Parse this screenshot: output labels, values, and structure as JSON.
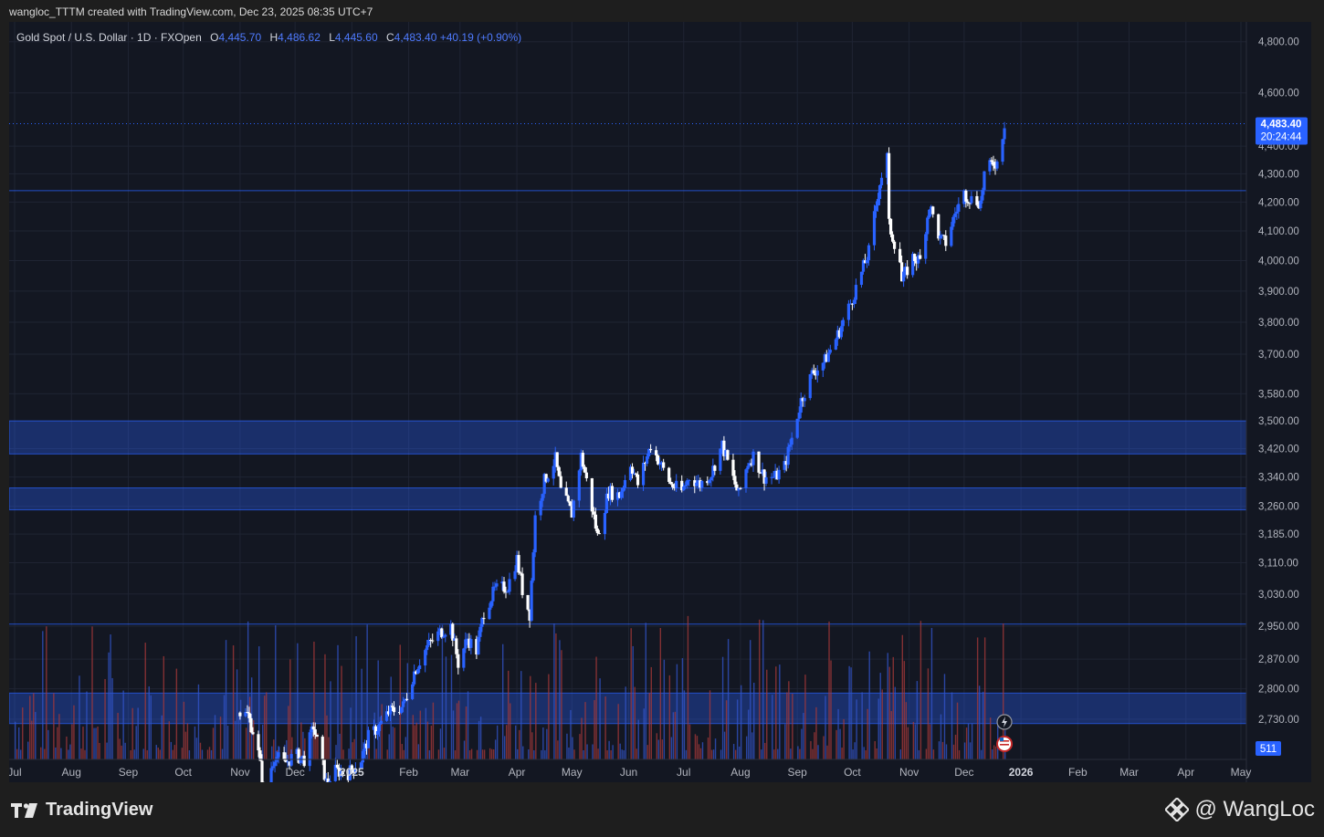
{
  "header": {
    "caption": "wangloc_TTTM created with TradingView.com, Dec 23, 2025 08:35 UTC+7"
  },
  "legend": {
    "symbol": "Gold Spot / U.S. Dollar · 1D · FXOpen",
    "o_label": "O",
    "o": "4,445.70",
    "h_label": "H",
    "h": "4,486.62",
    "l_label": "L",
    "l": "4,445.60",
    "c_label": "C",
    "c": "4,483.40",
    "change": "+40.19 (+0.90%)"
  },
  "price_tag": {
    "price": "4,483.40",
    "countdown": "20:24:44"
  },
  "volume_tag": "511",
  "footer": {
    "logo_text": "TradingView",
    "credit": "@ WangLoc"
  },
  "icons": [
    "lightning-icon",
    "us-flag-icon",
    "tradingview-logo-icon",
    "binance-diamond-icon"
  ],
  "colors": {
    "background": "#131722",
    "up": "#2962ff",
    "down": "#ffffff",
    "zone": "#2962ff"
  },
  "chart_data": {
    "type": "candlestick",
    "y_scale": "log",
    "ylim": [
      2640,
      4880
    ],
    "y_ticks": [
      {
        "value": 4800,
        "label": "4,800.00"
      },
      {
        "value": 4600,
        "label": "4,600.00"
      },
      {
        "value": 4400,
        "label": "4,400.00"
      },
      {
        "value": 4300,
        "label": "4,300.00"
      },
      {
        "value": 4200,
        "label": "4,200.00"
      },
      {
        "value": 4100,
        "label": "4,100.00"
      },
      {
        "value": 4000,
        "label": "4,000.00"
      },
      {
        "value": 3900,
        "label": "3,900.00"
      },
      {
        "value": 3800,
        "label": "3,800.00"
      },
      {
        "value": 3700,
        "label": "3,700.00"
      },
      {
        "value": 3580,
        "label": "3,580.00"
      },
      {
        "value": 3500,
        "label": "3,500.00"
      },
      {
        "value": 3420,
        "label": "3,420.00"
      },
      {
        "value": 3340,
        "label": "3,340.00"
      },
      {
        "value": 3260,
        "label": "3,260.00"
      },
      {
        "value": 3185,
        "label": "3,185.00"
      },
      {
        "value": 3110,
        "label": "3,110.00"
      },
      {
        "value": 3030,
        "label": "3,030.00"
      },
      {
        "value": 2950,
        "label": "2,950.00"
      },
      {
        "value": 2870,
        "label": "2,870.00"
      },
      {
        "value": 2800,
        "label": "2,800.00"
      },
      {
        "value": 2730,
        "label": "2,730.00"
      }
    ],
    "x_ticks": [
      {
        "date": "2024-07-01",
        "label": "Jul"
      },
      {
        "date": "2024-08-01",
        "label": "Aug"
      },
      {
        "date": "2024-09-01",
        "label": "Sep"
      },
      {
        "date": "2024-10-01",
        "label": "Oct"
      },
      {
        "date": "2024-11-01",
        "label": "Nov"
      },
      {
        "date": "2024-12-01",
        "label": "Dec"
      },
      {
        "date": "2025-01-01",
        "label": "2025"
      },
      {
        "date": "2025-02-01",
        "label": "Feb"
      },
      {
        "date": "2025-03-01",
        "label": "Mar"
      },
      {
        "date": "2025-04-01",
        "label": "Apr"
      },
      {
        "date": "2025-05-01",
        "label": "May"
      },
      {
        "date": "2025-06-01",
        "label": "Jun"
      },
      {
        "date": "2025-07-01",
        "label": "Jul"
      },
      {
        "date": "2025-08-01",
        "label": "Aug"
      },
      {
        "date": "2025-09-01",
        "label": "Sep"
      },
      {
        "date": "2025-10-01",
        "label": "Oct"
      },
      {
        "date": "2025-11-01",
        "label": "Nov"
      },
      {
        "date": "2025-12-01",
        "label": "Dec"
      },
      {
        "date": "2026-01-01",
        "label": "2026"
      },
      {
        "date": "2026-02-01",
        "label": "Feb"
      },
      {
        "date": "2026-03-01",
        "label": "Mar"
      },
      {
        "date": "2026-04-01",
        "label": "Apr"
      },
      {
        "date": "2026-05-01",
        "label": "May"
      }
    ],
    "xlim": [
      "2024-07-01",
      "2026-05-01"
    ],
    "zones": [
      {
        "low": 3405,
        "high": 3500
      },
      {
        "low": 3250,
        "high": 3310
      },
      {
        "low": 2720,
        "high": 2790
      }
    ],
    "horizontal_lines": [
      4240,
      2955
    ],
    "last_price_line": 4483.4,
    "price_path": [
      [
        "2024-11-01",
        2745
      ],
      [
        "2024-11-05",
        2740
      ],
      [
        "2024-11-10",
        2680
      ],
      [
        "2024-11-14",
        2570
      ],
      [
        "2024-11-20",
        2650
      ],
      [
        "2024-11-25",
        2630
      ],
      [
        "2024-12-01",
        2650
      ],
      [
        "2024-12-06",
        2640
      ],
      [
        "2024-12-11",
        2715
      ],
      [
        "2024-12-18",
        2590
      ],
      [
        "2024-12-23",
        2615
      ],
      [
        "2024-12-30",
        2610
      ],
      [
        "2025-01-06",
        2640
      ],
      [
        "2025-01-10",
        2690
      ],
      [
        "2025-01-16",
        2715
      ],
      [
        "2025-01-21",
        2745
      ],
      [
        "2025-01-29",
        2760
      ],
      [
        "2025-02-04",
        2840
      ],
      [
        "2025-02-11",
        2900
      ],
      [
        "2025-02-18",
        2935
      ],
      [
        "2025-02-24",
        2950
      ],
      [
        "2025-02-28",
        2860
      ],
      [
        "2025-03-05",
        2920
      ],
      [
        "2025-03-10",
        2890
      ],
      [
        "2025-03-14",
        2985
      ],
      [
        "2025-03-20",
        3040
      ],
      [
        "2025-03-27",
        3050
      ],
      [
        "2025-04-01",
        3120
      ],
      [
        "2025-04-04",
        3040
      ],
      [
        "2025-04-08",
        2980
      ],
      [
        "2025-04-11",
        3230
      ],
      [
        "2025-04-16",
        3330
      ],
      [
        "2025-04-22",
        3390
      ],
      [
        "2025-04-25",
        3300
      ],
      [
        "2025-05-01",
        3240
      ],
      [
        "2025-05-06",
        3400
      ],
      [
        "2025-05-09",
        3330
      ],
      [
        "2025-05-15",
        3180
      ],
      [
        "2025-05-21",
        3300
      ],
      [
        "2025-05-27",
        3290
      ],
      [
        "2025-06-02",
        3380
      ],
      [
        "2025-06-06",
        3320
      ],
      [
        "2025-06-13",
        3430
      ],
      [
        "2025-06-19",
        3370
      ],
      [
        "2025-06-24",
        3320
      ],
      [
        "2025-06-30",
        3300
      ],
      [
        "2025-07-04",
        3340
      ],
      [
        "2025-07-10",
        3320
      ],
      [
        "2025-07-16",
        3350
      ],
      [
        "2025-07-22",
        3430
      ],
      [
        "2025-07-29",
        3320
      ],
      [
        "2025-07-31",
        3290
      ],
      [
        "2025-08-05",
        3380
      ],
      [
        "2025-08-08",
        3400
      ],
      [
        "2025-08-14",
        3340
      ],
      [
        "2025-08-20",
        3340
      ],
      [
        "2025-08-25",
        3370
      ],
      [
        "2025-08-29",
        3450
      ],
      [
        "2025-09-03",
        3560
      ],
      [
        "2025-09-09",
        3640
      ],
      [
        "2025-09-16",
        3680
      ],
      [
        "2025-09-23",
        3760
      ],
      [
        "2025-09-30",
        3860
      ],
      [
        "2025-10-06",
        3960
      ],
      [
        "2025-10-10",
        4030
      ],
      [
        "2025-10-16",
        4270
      ],
      [
        "2025-10-20",
        4360
      ],
      [
        "2025-10-21",
        4120
      ],
      [
        "2025-10-27",
        4000
      ],
      [
        "2025-10-28",
        3930
      ],
      [
        "2025-11-03",
        4010
      ],
      [
        "2025-11-07",
        4000
      ],
      [
        "2025-11-12",
        4190
      ],
      [
        "2025-11-18",
        4070
      ],
      [
        "2025-11-21",
        4060
      ],
      [
        "2025-11-26",
        4160
      ],
      [
        "2025-12-01",
        4230
      ],
      [
        "2025-12-05",
        4210
      ],
      [
        "2025-12-10",
        4200
      ],
      [
        "2025-12-12",
        4300
      ],
      [
        "2025-12-17",
        4340
      ],
      [
        "2025-12-19",
        4340
      ],
      [
        "2025-12-22",
        4445.7
      ],
      [
        "2025-12-23",
        4483.4
      ]
    ]
  }
}
